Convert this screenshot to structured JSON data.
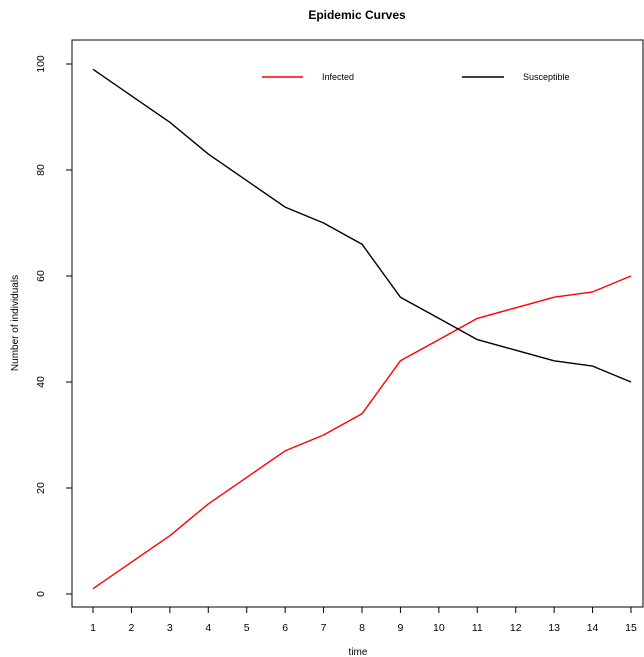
{
  "chart_data": {
    "type": "line",
    "title": "Epidemic Curves",
    "xlabel": "time",
    "ylabel": "Number of individuals",
    "x": [
      1,
      2,
      3,
      4,
      5,
      6,
      7,
      8,
      9,
      10,
      11,
      12,
      13,
      14,
      15
    ],
    "xticks": [
      "1",
      "2",
      "3",
      "4",
      "5",
      "6",
      "7",
      "8",
      "9",
      "10",
      "11",
      "12",
      "13",
      "14",
      "15"
    ],
    "yticks": [
      "0",
      "20",
      "40",
      "60",
      "80",
      "100"
    ],
    "xlim": [
      1,
      15
    ],
    "ylim": [
      0,
      100
    ],
    "grid": false,
    "legend": "top",
    "series": [
      {
        "name": "Infected",
        "color": "#ff0000",
        "values": [
          1,
          6,
          11,
          17,
          22,
          27,
          30,
          34,
          44,
          48,
          52,
          54,
          56,
          57,
          60
        ]
      },
      {
        "name": "Susceptible",
        "color": "#000000",
        "values": [
          99,
          94,
          89,
          83,
          78,
          73,
          70,
          66,
          56,
          52,
          48,
          46,
          44,
          43,
          40
        ]
      }
    ]
  }
}
